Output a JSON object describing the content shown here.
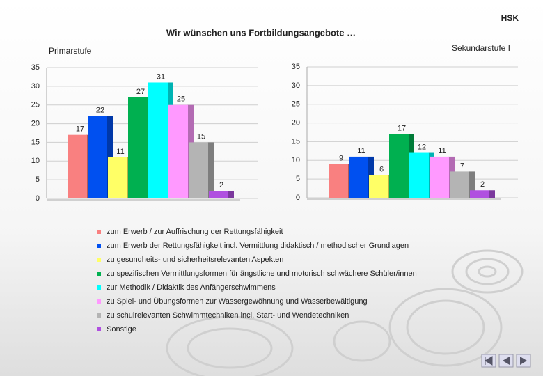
{
  "header": "HSK",
  "title": "Wir wünschen uns Fortbildungsangebote …",
  "chart_data": {
    "type": "bar",
    "categories": [
      "Primarstufe",
      "Sekundarstufe I"
    ],
    "ylim": [
      0,
      35
    ],
    "yticks": [
      0,
      5,
      10,
      15,
      20,
      25,
      30,
      35
    ],
    "grid": true,
    "series": [
      {
        "name": "zum Erwerb / zur Auffrischung der Rettungsfähigkeit",
        "color": "#f98080",
        "values": [
          17,
          9
        ]
      },
      {
        "name": "zum Erwerb der Rettungsfähigkeit incl. Vermittlung didaktisch / methodischer Grundlagen",
        "color": "#0050f0",
        "values": [
          22,
          11
        ]
      },
      {
        "name": "zu gesundheits- und sicherheitsrelevanten Aspekten",
        "color": "#ffff66",
        "values": [
          11,
          6
        ]
      },
      {
        "name": "zu spezifischen Vermittlungsformen für ängstliche und motorisch schwächere Schüler/innen",
        "color": "#00b050",
        "values": [
          27,
          17
        ]
      },
      {
        "name": "zur Methodik / Didaktik des Anfängerschwimmens",
        "color": "#00ffff",
        "values": [
          31,
          12
        ]
      },
      {
        "name": "zu Spiel- und Übungsformen zur Wassergewöhnung und Wasserbewältigung",
        "color": "#ff99ff",
        "values": [
          25,
          11
        ]
      },
      {
        "name": "zu schulrelevanten Schwimmtechniken incl. Start- und Wendetechniken",
        "color": "#b4b4b4",
        "values": [
          15,
          7
        ]
      },
      {
        "name": "Sonstige",
        "color": "#b050e0",
        "values": [
          2,
          2
        ]
      }
    ]
  }
}
